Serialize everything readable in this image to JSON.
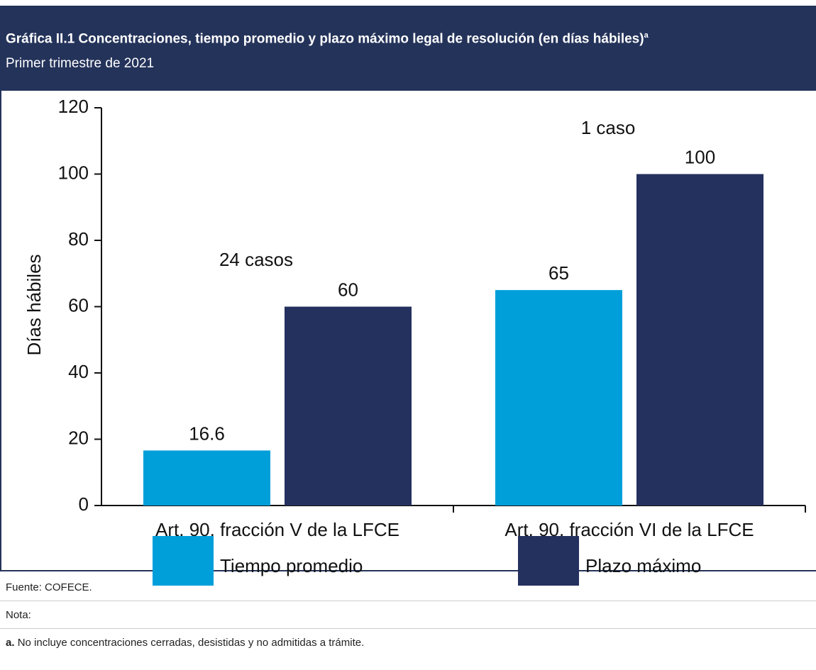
{
  "chart_data": {
    "type": "bar",
    "title": "Gráfica II.1 Concentraciones, tiempo promedio y plazo máximo legal de resolución (en días hábiles)",
    "title_marker": "a",
    "subtitle": "Primer trimestre de 2021",
    "y_label": "Días hábiles",
    "categories": [
      "Art. 90, fracción V de la LFCE",
      "Art. 90, fracción VI de la LFCE"
    ],
    "series": [
      {
        "name": "Tiempo promedio",
        "color": "#009fda",
        "values": [
          16.6,
          65
        ]
      },
      {
        "name": "Plazo máximo",
        "color": "#24305e",
        "values": [
          60,
          100
        ]
      }
    ],
    "annotations": [
      "24 casos",
      "1 caso"
    ],
    "ylim": [
      0,
      120
    ],
    "yticks": [
      0,
      20,
      40,
      60,
      80,
      100,
      120
    ]
  },
  "footer": {
    "source": "Fuente: COFECE.",
    "note_label": "Nota:",
    "note_marker": "a.",
    "note_text": "No incluye concentraciones cerradas, desistidas y no admitidas a trámite."
  }
}
